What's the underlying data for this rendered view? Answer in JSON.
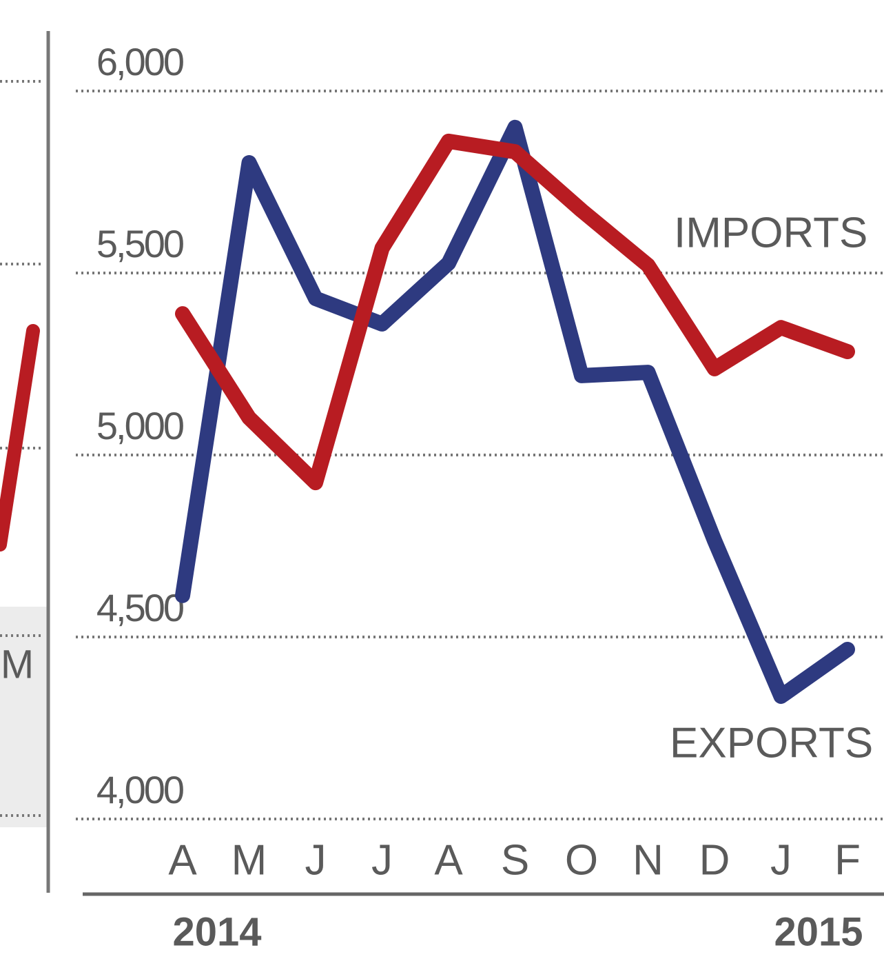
{
  "chart_data": {
    "type": "line",
    "categories": [
      "A",
      "M",
      "J",
      "J",
      "A",
      "S",
      "O",
      "N",
      "D",
      "J",
      "F"
    ],
    "series": [
      {
        "name": "IMPORTS",
        "color": "#b81c22",
        "values": [
          5388,
          5102,
          4924,
          5568,
          5862,
          5833,
          5672,
          5521,
          5237,
          5350,
          5284
        ]
      },
      {
        "name": "EXPORTS",
        "color": "#2e3a80",
        "values": [
          4614,
          5803,
          5430,
          5360,
          5527,
          5900,
          5218,
          5227,
          4765,
          4337,
          4466
        ]
      }
    ],
    "ylim": [
      4000,
      6000
    ],
    "yticks": [
      {
        "value": 4000,
        "label": "4,000"
      },
      {
        "value": 4500,
        "label": "4,500"
      },
      {
        "value": 5000,
        "label": "5,000"
      },
      {
        "value": 5500,
        "label": "5,500"
      },
      {
        "value": 6000,
        "label": "6,000"
      }
    ],
    "grid": true,
    "year_labels": [
      "2014",
      "2015"
    ],
    "left_panel_label": "M"
  }
}
